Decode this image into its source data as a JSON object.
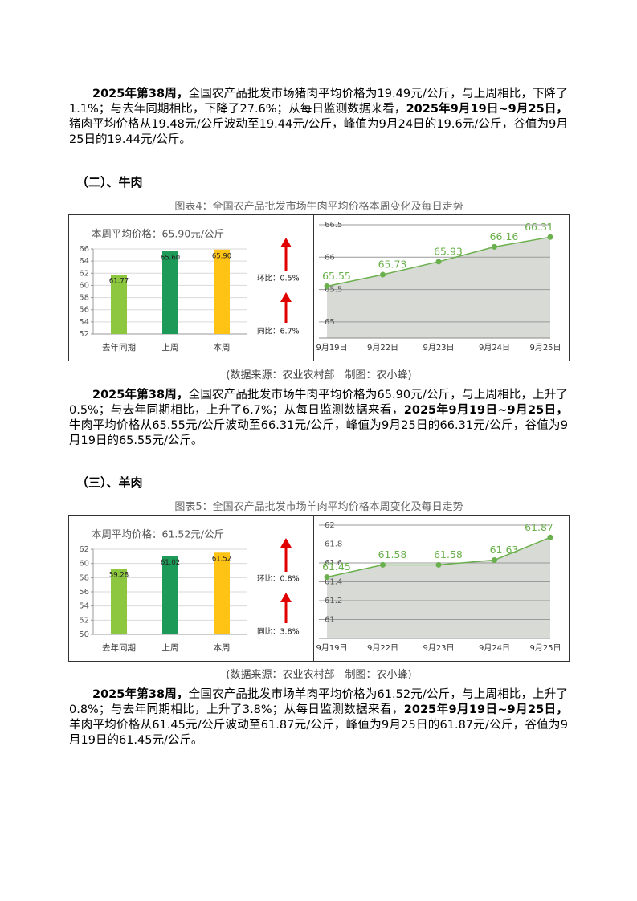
{
  "paragraph_1": {
    "runs": [
      {
        "text": "2025年第38周，",
        "bold": true
      },
      {
        "text": "全国农产品批发市场猪肉平均价格为19.49元/公斤，与上周相比，下降了1.1%；与去年同期相比，下降了27.6%；从每日监测数据来看，"
      },
      {
        "text": "2025年9月19日~9月25日，",
        "bold": true
      },
      {
        "text": "猪肉平均价格从19.48元/公斤波动至19.44元/公斤，峰值为9月24日的19.6元/公斤，谷值为9月25日的19.44元/公斤。"
      }
    ]
  },
  "section_2": {
    "heading": "（二）、牛肉",
    "figure": {
      "caption": "图表4：全国农产品批发市场牛肉平均价格本周变化及每日走势",
      "bar_chart": {
        "type": "bar",
        "title": "本周平均价格：65.90元/公斤",
        "categories": [
          "去年同期",
          "上周",
          "本周"
        ],
        "values": [
          61.77,
          65.6,
          65.9
        ],
        "value_labels": [
          "61.77",
          "65.60",
          "65.90"
        ],
        "colors": [
          "#8dc63f",
          "#1e9a58",
          "#ffc316"
        ],
        "ylim": [
          52,
          66
        ],
        "yticks": [
          52,
          54,
          56,
          58,
          60,
          62,
          64,
          66
        ],
        "grid": true,
        "annotations": [
          "环比：0.5%",
          "同比：6.7%"
        ],
        "arrow_color": "#e00000"
      },
      "line_chart": {
        "type": "area",
        "x": [
          "9月19日",
          "9月22日",
          "9月23日",
          "9月24日",
          "9月25日"
        ],
        "values": [
          65.55,
          65.73,
          65.93,
          66.16,
          66.31
        ],
        "color": "#6ab04c",
        "fill": "#d8dbd5",
        "ylim": [
          64.75,
          66.5
        ],
        "yticks": [
          65,
          65.5,
          66,
          66.5
        ],
        "grid": true
      },
      "source": "(数据来源：农业农村部　制图：农小蜂)"
    }
  },
  "paragraph_2": {
    "runs": [
      {
        "text": "2025年第38周，",
        "bold": true
      },
      {
        "text": "全国农产品批发市场牛肉平均价格为65.90元/公斤，与上周相比，上升了0.5%；与去年同期相比，上升了6.7%；从每日监测数据来看，"
      },
      {
        "text": "2025年9月19日~9月25日，",
        "bold": true
      },
      {
        "text": "牛肉平均价格从65.55元/公斤波动至66.31元/公斤，峰值为9月25日的66.31元/公斤，谷值为9月19日的65.55元/公斤。"
      }
    ]
  },
  "section_3": {
    "heading": "（三）、羊肉",
    "figure": {
      "caption": "图表5：全国农产品批发市场羊肉平均价格本周变化及每日走势",
      "bar_chart": {
        "type": "bar",
        "title": "本周平均价格：61.52元/公斤",
        "categories": [
          "去年同期",
          "上周",
          "本周"
        ],
        "values": [
          59.28,
          61.02,
          61.52
        ],
        "value_labels": [
          "59.28",
          "61.02",
          "61.52"
        ],
        "colors": [
          "#8dc63f",
          "#1e9a58",
          "#ffc316"
        ],
        "ylim": [
          50,
          62
        ],
        "yticks": [
          50,
          52,
          54,
          56,
          58,
          60,
          62
        ],
        "grid": true,
        "annotations": [
          "环比：0.8%",
          "同比：3.8%"
        ],
        "arrow_color": "#e00000"
      },
      "line_chart": {
        "type": "area",
        "x": [
          "9月19日",
          "9月22日",
          "9月23日",
          "9月24日",
          "9月25日"
        ],
        "values": [
          61.45,
          61.58,
          61.58,
          61.63,
          61.87
        ],
        "color": "#6ab04c",
        "fill": "#d8dbd5",
        "ylim": [
          60.8,
          62
        ],
        "yticks": [
          61,
          61.2,
          61.4,
          61.6,
          61.8,
          62
        ],
        "grid": true
      },
      "source": "(数据来源：农业农村部　制图：农小蜂)"
    }
  },
  "paragraph_3": {
    "runs": [
      {
        "text": "2025年第38周，",
        "bold": true
      },
      {
        "text": "全国农产品批发市场羊肉平均价格为61.52元/公斤，与上周相比，上升了0.8%；与去年同期相比，上升了3.8%；从每日监测数据来看，"
      },
      {
        "text": "2025年9月19日~9月25日，",
        "bold": true
      },
      {
        "text": "羊肉平均价格从61.45元/公斤波动至61.87元/公斤，峰值为9月25日的61.87元/公斤，谷值为9月19日的61.45元/公斤。"
      }
    ]
  }
}
